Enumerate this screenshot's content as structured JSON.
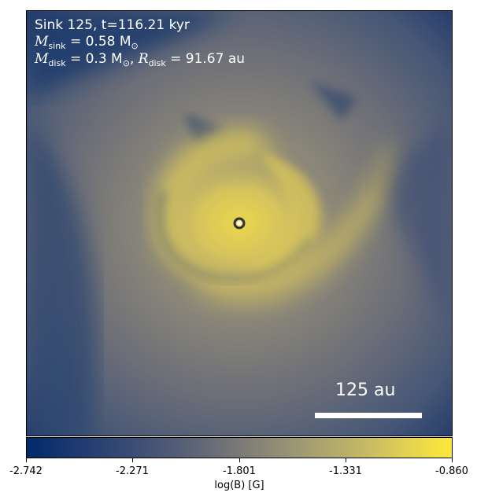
{
  "annotations": {
    "line1": "Sink 125, t=116.21 kyr",
    "msink_symbol": "M",
    "msink_sub": "sink",
    "msink_value": "= 0.58 M",
    "msink_unit_sub": "⊙",
    "mdisk_symbol": "M",
    "mdisk_sub": "disk",
    "mdisk_value": "= 0.3 M",
    "mdisk_unit_sub": "⊙",
    "rdisk_symbol": "R",
    "rdisk_sub": "disk",
    "rdisk_value": "= 91.67 au"
  },
  "scalebar": {
    "label": "125 au"
  },
  "colorbar": {
    "label": "log(B) [G]",
    "ticks": [
      "-2.742",
      "-2.271",
      "-1.801",
      "-1.331",
      "-0.860"
    ],
    "colormap": "cividis"
  },
  "colors": {
    "low": "#002a68",
    "mid": "#807e78",
    "high": "#fde93a",
    "sink_marker": "#ffffff"
  }
}
